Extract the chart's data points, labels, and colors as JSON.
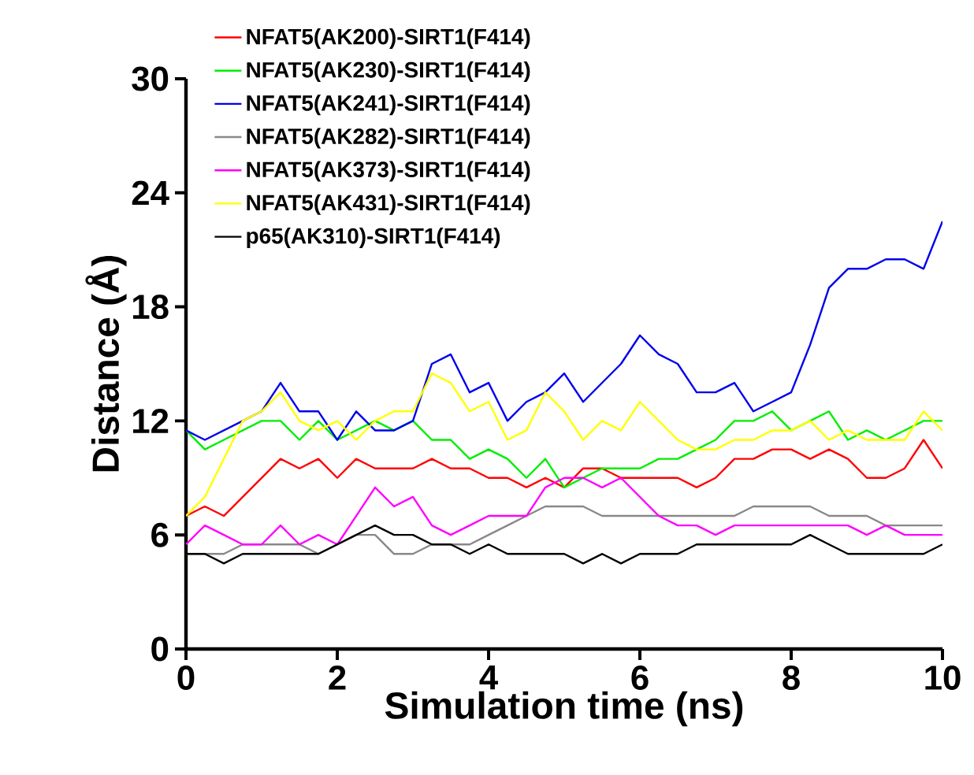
{
  "chart_data": {
    "type": "line",
    "xlabel": "Simulation time (ns)",
    "ylabel": "Distance (Å)",
    "x": [
      0,
      0.25,
      0.5,
      0.75,
      1,
      1.25,
      1.5,
      1.75,
      2,
      2.25,
      2.5,
      2.75,
      3,
      3.25,
      3.5,
      3.75,
      4,
      4.25,
      4.5,
      4.75,
      5,
      5.25,
      5.5,
      5.75,
      6,
      6.25,
      6.5,
      6.75,
      7,
      7.25,
      7.5,
      7.75,
      8,
      8.25,
      8.5,
      8.75,
      9,
      9.25,
      9.5,
      9.75,
      10
    ],
    "xlim": [
      0,
      10
    ],
    "xticks": [
      0,
      2,
      4,
      6,
      8,
      10
    ],
    "ylim": [
      0,
      30
    ],
    "yticks": [
      0,
      6,
      12,
      18,
      24,
      30
    ],
    "grid": false,
    "legend": "top left",
    "marker": "none",
    "line_style": "solid",
    "series": [
      {
        "name": "NFAT5(AK200)-SIRT1(F414)",
        "color": "#ff0000",
        "values": [
          7,
          7.5,
          7,
          8,
          9,
          10,
          9.5,
          10,
          9,
          10,
          9.5,
          9.5,
          9.5,
          10,
          9.5,
          9.5,
          9,
          9,
          8.5,
          9,
          8.5,
          9.5,
          9.5,
          9,
          9,
          9,
          9,
          8.5,
          9,
          10,
          10,
          10.5,
          10.5,
          10,
          10.5,
          10,
          9,
          9,
          9.5,
          11,
          9.5
        ]
      },
      {
        "name": "NFAT5(AK230)-SIRT1(F414)",
        "color": "#00ee00",
        "values": [
          11.5,
          10.5,
          11,
          11.5,
          12,
          12,
          11,
          12,
          11,
          11.5,
          12,
          11.5,
          12,
          11,
          11,
          10,
          10.5,
          10,
          9,
          10,
          8.5,
          9,
          9.5,
          9.5,
          9.5,
          10,
          10,
          10.5,
          11,
          12,
          12,
          12.5,
          11.5,
          12,
          12.5,
          11,
          11.5,
          11,
          11.5,
          12,
          12
        ]
      },
      {
        "name": "NFAT5(AK241)-SIRT1(F414)",
        "color": "#0000ee",
        "values": [
          11.5,
          11,
          11.5,
          12,
          12.5,
          14,
          12.5,
          12.5,
          11,
          12.5,
          11.5,
          11.5,
          12,
          15,
          15.5,
          13.5,
          14,
          12,
          13,
          13.5,
          14.5,
          13,
          14,
          15,
          16.5,
          15.5,
          15,
          13.5,
          13.5,
          14,
          12.5,
          13,
          13.5,
          16,
          19,
          20,
          20,
          20.5,
          20.5,
          20,
          22.5
        ]
      },
      {
        "name": "NFAT5(AK282)-SIRT1(F414)",
        "color": "#888888",
        "values": [
          5,
          5,
          5,
          5.5,
          5.5,
          5.5,
          5.5,
          5,
          5.5,
          6,
          6,
          5,
          5,
          5.5,
          5.5,
          5.5,
          6,
          6.5,
          7,
          7.5,
          7.5,
          7.5,
          7,
          7,
          7,
          7,
          7,
          7,
          7,
          7,
          7.5,
          7.5,
          7.5,
          7.5,
          7,
          7,
          7,
          6.5,
          6.5,
          6.5,
          6.5
        ]
      },
      {
        "name": "NFAT5(AK373)-SIRT1(F414)",
        "color": "#ff00ff",
        "values": [
          5.5,
          6.5,
          6,
          5.5,
          5.5,
          6.5,
          5.5,
          6,
          5.5,
          7,
          8.5,
          7.5,
          8,
          6.5,
          6,
          6.5,
          7,
          7,
          7,
          8.5,
          9,
          9,
          8.5,
          9,
          8,
          7,
          6.5,
          6.5,
          6,
          6.5,
          6.5,
          6.5,
          6.5,
          6.5,
          6.5,
          6.5,
          6,
          6.5,
          6,
          6,
          6
        ]
      },
      {
        "name": "NFAT5(AK431)-SIRT1(F414)",
        "color": "#ffff00",
        "values": [
          7,
          8,
          10,
          12,
          12.5,
          13.5,
          12,
          11.5,
          12,
          11,
          12,
          12.5,
          12.5,
          14.5,
          14,
          12.5,
          13,
          11,
          11.5,
          13.5,
          12.5,
          11,
          12,
          11.5,
          13,
          12,
          11,
          10.5,
          10.5,
          11,
          11,
          11.5,
          11.5,
          12,
          11,
          11.5,
          11,
          11,
          11,
          12.5,
          11.5
        ]
      },
      {
        "name": "p65(AK310)-SIRT1(F414)",
        "color": "#000000",
        "values": [
          5,
          5,
          4.5,
          5,
          5,
          5,
          5,
          5,
          5.5,
          6,
          6.5,
          6,
          6,
          5.5,
          5.5,
          5,
          5.5,
          5,
          5,
          5,
          5,
          4.5,
          5,
          4.5,
          5,
          5,
          5,
          5.5,
          5.5,
          5.5,
          5.5,
          5.5,
          5.5,
          6,
          5.5,
          5,
          5,
          5,
          5,
          5,
          5.5
        ]
      }
    ]
  }
}
